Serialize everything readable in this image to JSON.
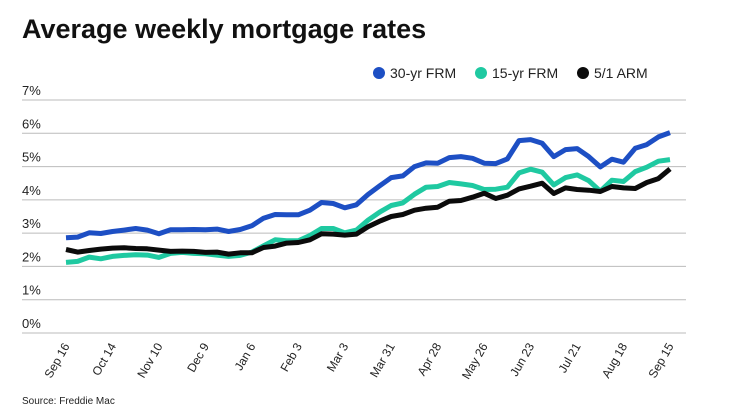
{
  "chart_data": {
    "type": "line",
    "title": "Average weekly mortgage rates",
    "source": "Source: Freddie Mac",
    "categories": [
      "Sep 16",
      null,
      null,
      null,
      "Oct 14",
      null,
      null,
      null,
      "Nov 10",
      null,
      null,
      null,
      "Dec 9",
      null,
      null,
      null,
      "Jan 6",
      null,
      null,
      null,
      "Feb 3",
      null,
      null,
      null,
      "Mar 3",
      null,
      null,
      null,
      "Mar 31",
      null,
      null,
      null,
      "Apr 28",
      null,
      null,
      null,
      "May 26",
      null,
      null,
      null,
      "Jun 23",
      null,
      null,
      null,
      "Jul 21",
      null,
      null,
      null,
      "Aug 18",
      null,
      null,
      null,
      "Sep 15"
    ],
    "series": [
      {
        "name": "30-yr FRM",
        "color": "#1d4fc4",
        "values": [
          2.86,
          2.88,
          3.01,
          2.99,
          3.05,
          3.09,
          3.14,
          3.09,
          2.98,
          3.1,
          3.1,
          3.11,
          3.1,
          3.12,
          3.05,
          3.11,
          3.22,
          3.45,
          3.56,
          3.55,
          3.55,
          3.69,
          3.92,
          3.89,
          3.76,
          3.85,
          4.16,
          4.42,
          4.67,
          4.72,
          5.0,
          5.11,
          5.1,
          5.27,
          5.3,
          5.25,
          5.1,
          5.09,
          5.23,
          5.78,
          5.81,
          5.7,
          5.3,
          5.51,
          5.54,
          5.3,
          4.99,
          5.22,
          5.13,
          5.55,
          5.66,
          5.89,
          6.02
        ]
      },
      {
        "name": "15-yr FRM",
        "color": "#1fc9a1",
        "values": [
          2.12,
          2.15,
          2.28,
          2.23,
          2.3,
          2.33,
          2.35,
          2.34,
          2.27,
          2.39,
          2.42,
          2.39,
          2.38,
          2.34,
          2.3,
          2.33,
          2.43,
          2.62,
          2.8,
          2.77,
          2.77,
          2.93,
          3.14,
          3.14,
          3.01,
          3.09,
          3.39,
          3.63,
          3.83,
          3.91,
          4.17,
          4.38,
          4.4,
          4.52,
          4.48,
          4.43,
          4.31,
          4.32,
          4.38,
          4.81,
          4.92,
          4.83,
          4.45,
          4.67,
          4.75,
          4.58,
          4.26,
          4.59,
          4.55,
          4.85,
          4.98,
          5.16,
          5.21
        ]
      },
      {
        "name": "5/1 ARM",
        "color": "#0b0b0b",
        "values": [
          2.51,
          2.43,
          2.48,
          2.52,
          2.55,
          2.56,
          2.54,
          2.53,
          2.49,
          2.45,
          2.46,
          2.45,
          2.42,
          2.43,
          2.37,
          2.41,
          2.41,
          2.57,
          2.61,
          2.7,
          2.72,
          2.8,
          2.98,
          2.97,
          2.94,
          2.97,
          3.19,
          3.36,
          3.5,
          3.56,
          3.69,
          3.75,
          3.78,
          3.96,
          3.98,
          4.08,
          4.2,
          4.04,
          4.14,
          4.33,
          4.41,
          4.5,
          4.19,
          4.36,
          4.31,
          4.29,
          4.25,
          4.4,
          4.36,
          4.34,
          4.52,
          4.64,
          4.93
        ]
      }
    ],
    "ylim": [
      0,
      7
    ],
    "yticks": [
      {
        "value": 0,
        "label": "0%"
      },
      {
        "value": 1,
        "label": "1%"
      },
      {
        "value": 2,
        "label": "2%"
      },
      {
        "value": 3,
        "label": "3%"
      },
      {
        "value": 4,
        "label": "4%"
      },
      {
        "value": 5,
        "label": "5%"
      },
      {
        "value": 6,
        "label": "6%"
      },
      {
        "value": 7,
        "label": "7%"
      }
    ],
    "grid": true
  }
}
